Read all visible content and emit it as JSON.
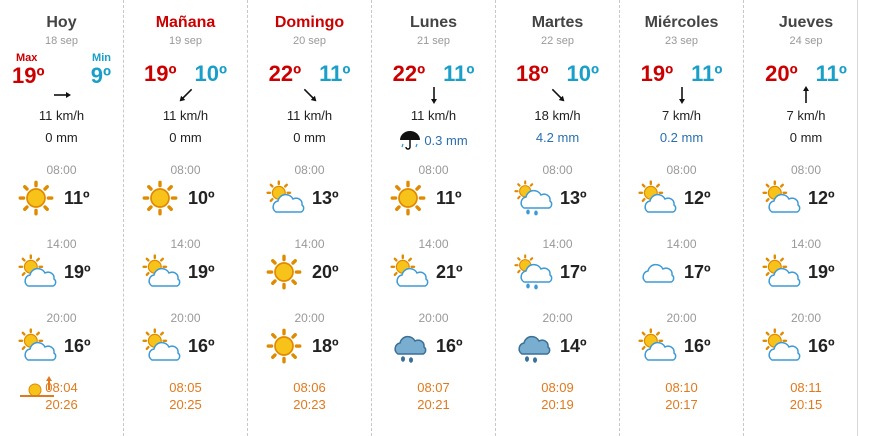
{
  "labels": {
    "max": "Max",
    "min": "Min"
  },
  "colors": {
    "max": "#cc0000",
    "min": "#1a9fc9",
    "sun": "#e07a1e"
  },
  "days": [
    {
      "name": "Hoy",
      "name_color": "normal",
      "date": "18 sep",
      "max": "19º",
      "min": "9º",
      "wind_dir": "E",
      "wind": "11 km/h",
      "rain": "0 mm",
      "rain_icon": false,
      "slots": [
        {
          "time": "08:00",
          "icon": "sun-icon",
          "temp": "11º"
        },
        {
          "time": "14:00",
          "icon": "sun-cloud-icon",
          "temp": "19º"
        },
        {
          "time": "20:00",
          "icon": "sun-cloud-icon",
          "temp": "16º"
        }
      ],
      "sunrise": "08:04",
      "sunset": "20:26"
    },
    {
      "name": "Mañana",
      "name_color": "red",
      "date": "19 sep",
      "max": "19º",
      "min": "10º",
      "wind_dir": "SW",
      "wind": "11 km/h",
      "rain": "0 mm",
      "rain_icon": false,
      "slots": [
        {
          "time": "08:00",
          "icon": "sun-icon",
          "temp": "10º"
        },
        {
          "time": "14:00",
          "icon": "sun-cloud-icon",
          "temp": "19º"
        },
        {
          "time": "20:00",
          "icon": "sun-cloud-icon",
          "temp": "16º"
        }
      ],
      "sunrise": "08:05",
      "sunset": "20:25"
    },
    {
      "name": "Domingo",
      "name_color": "red",
      "date": "20 sep",
      "max": "22º",
      "min": "11º",
      "wind_dir": "SE",
      "wind": "11 km/h",
      "rain": "0 mm",
      "rain_icon": false,
      "slots": [
        {
          "time": "08:00",
          "icon": "sun-cloud-icon",
          "temp": "13º"
        },
        {
          "time": "14:00",
          "icon": "sun-icon",
          "temp": "20º"
        },
        {
          "time": "20:00",
          "icon": "sun-icon",
          "temp": "18º"
        }
      ],
      "sunrise": "08:06",
      "sunset": "20:23"
    },
    {
      "name": "Lunes",
      "name_color": "normal",
      "date": "21 sep",
      "max": "22º",
      "min": "11º",
      "wind_dir": "S",
      "wind": "11 km/h",
      "rain": "0.3 mm",
      "rain_icon": true,
      "slots": [
        {
          "time": "08:00",
          "icon": "sun-icon",
          "temp": "11º"
        },
        {
          "time": "14:00",
          "icon": "sun-cloud-icon",
          "temp": "21º"
        },
        {
          "time": "20:00",
          "icon": "rain-cloud-icon",
          "temp": "16º"
        }
      ],
      "sunrise": "08:07",
      "sunset": "20:21"
    },
    {
      "name": "Martes",
      "name_color": "normal",
      "date": "22 sep",
      "max": "18º",
      "min": "10º",
      "wind_dir": "SE",
      "wind": "18 km/h",
      "rain": "4.2 mm",
      "rain_icon": false,
      "slots": [
        {
          "time": "08:00",
          "icon": "sun-rain-icon",
          "temp": "13º"
        },
        {
          "time": "14:00",
          "icon": "sun-rain-icon",
          "temp": "17º"
        },
        {
          "time": "20:00",
          "icon": "rain-cloud-icon",
          "temp": "14º"
        }
      ],
      "sunrise": "08:09",
      "sunset": "20:19"
    },
    {
      "name": "Miércoles",
      "name_color": "normal",
      "date": "23 sep",
      "max": "19º",
      "min": "11º",
      "wind_dir": "S",
      "wind": "7 km/h",
      "rain": "0.2 mm",
      "rain_icon": false,
      "slots": [
        {
          "time": "08:00",
          "icon": "sun-cloud-icon",
          "temp": "12º"
        },
        {
          "time": "14:00",
          "icon": "cloud-icon",
          "temp": "17º"
        },
        {
          "time": "20:00",
          "icon": "sun-cloud-icon",
          "temp": "16º"
        }
      ],
      "sunrise": "08:10",
      "sunset": "20:17"
    },
    {
      "name": "Jueves",
      "name_color": "normal",
      "date": "24 sep",
      "max": "20º",
      "min": "11º",
      "wind_dir": "N",
      "wind": "7 km/h",
      "rain": "0 mm",
      "rain_icon": false,
      "slots": [
        {
          "time": "08:00",
          "icon": "sun-cloud-icon",
          "temp": "12º"
        },
        {
          "time": "14:00",
          "icon": "sun-cloud-icon",
          "temp": "19º"
        },
        {
          "time": "20:00",
          "icon": "sun-cloud-icon",
          "temp": "16º"
        }
      ],
      "sunrise": "08:11",
      "sunset": "20:15"
    }
  ]
}
